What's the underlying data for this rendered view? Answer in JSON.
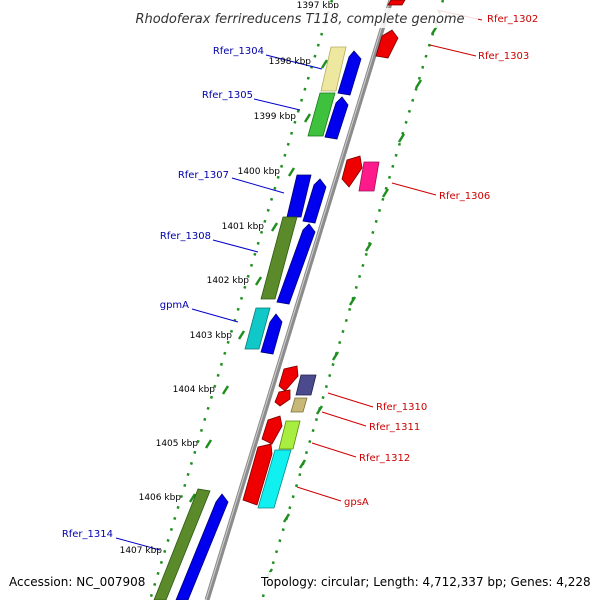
{
  "title": "Rhodoferax ferrireducens T118, complete genome",
  "accession": "Accession: NC_007908",
  "topology": "Topology: circular; Length: 4,712,337 bp; Genes: 4,228",
  "colors": {
    "forward_label": "#0000aa",
    "reverse_label": "#cc0000",
    "backbone": "#8c8c8c",
    "dotted_track": "#1f8f1f",
    "cds_forward": "#0000ee",
    "cds_reverse": "#ee0000"
  },
  "kbp_ticks": [
    {
      "label": "1397 kbp"
    },
    {
      "label": "1398 kbp"
    },
    {
      "label": "1399 kbp"
    },
    {
      "label": "1400 kbp"
    },
    {
      "label": "1401 kbp"
    },
    {
      "label": "1402 kbp"
    },
    {
      "label": "1403 kbp"
    },
    {
      "label": "1404 kbp"
    },
    {
      "label": "1405 kbp"
    },
    {
      "label": "1406 kbp"
    },
    {
      "label": "1407 kbp"
    }
  ],
  "forward_labels": [
    "Rfer_1304",
    "Rfer_1305",
    "Rfer_1307",
    "Rfer_1308",
    "gpmA",
    "Rfer_1314"
  ],
  "reverse_labels": [
    "Rfer_1302",
    "Rfer_1303",
    "Rfer_1306",
    "Rfer_1310",
    "Rfer_1311",
    "Rfer_1312",
    "gpsA"
  ]
}
